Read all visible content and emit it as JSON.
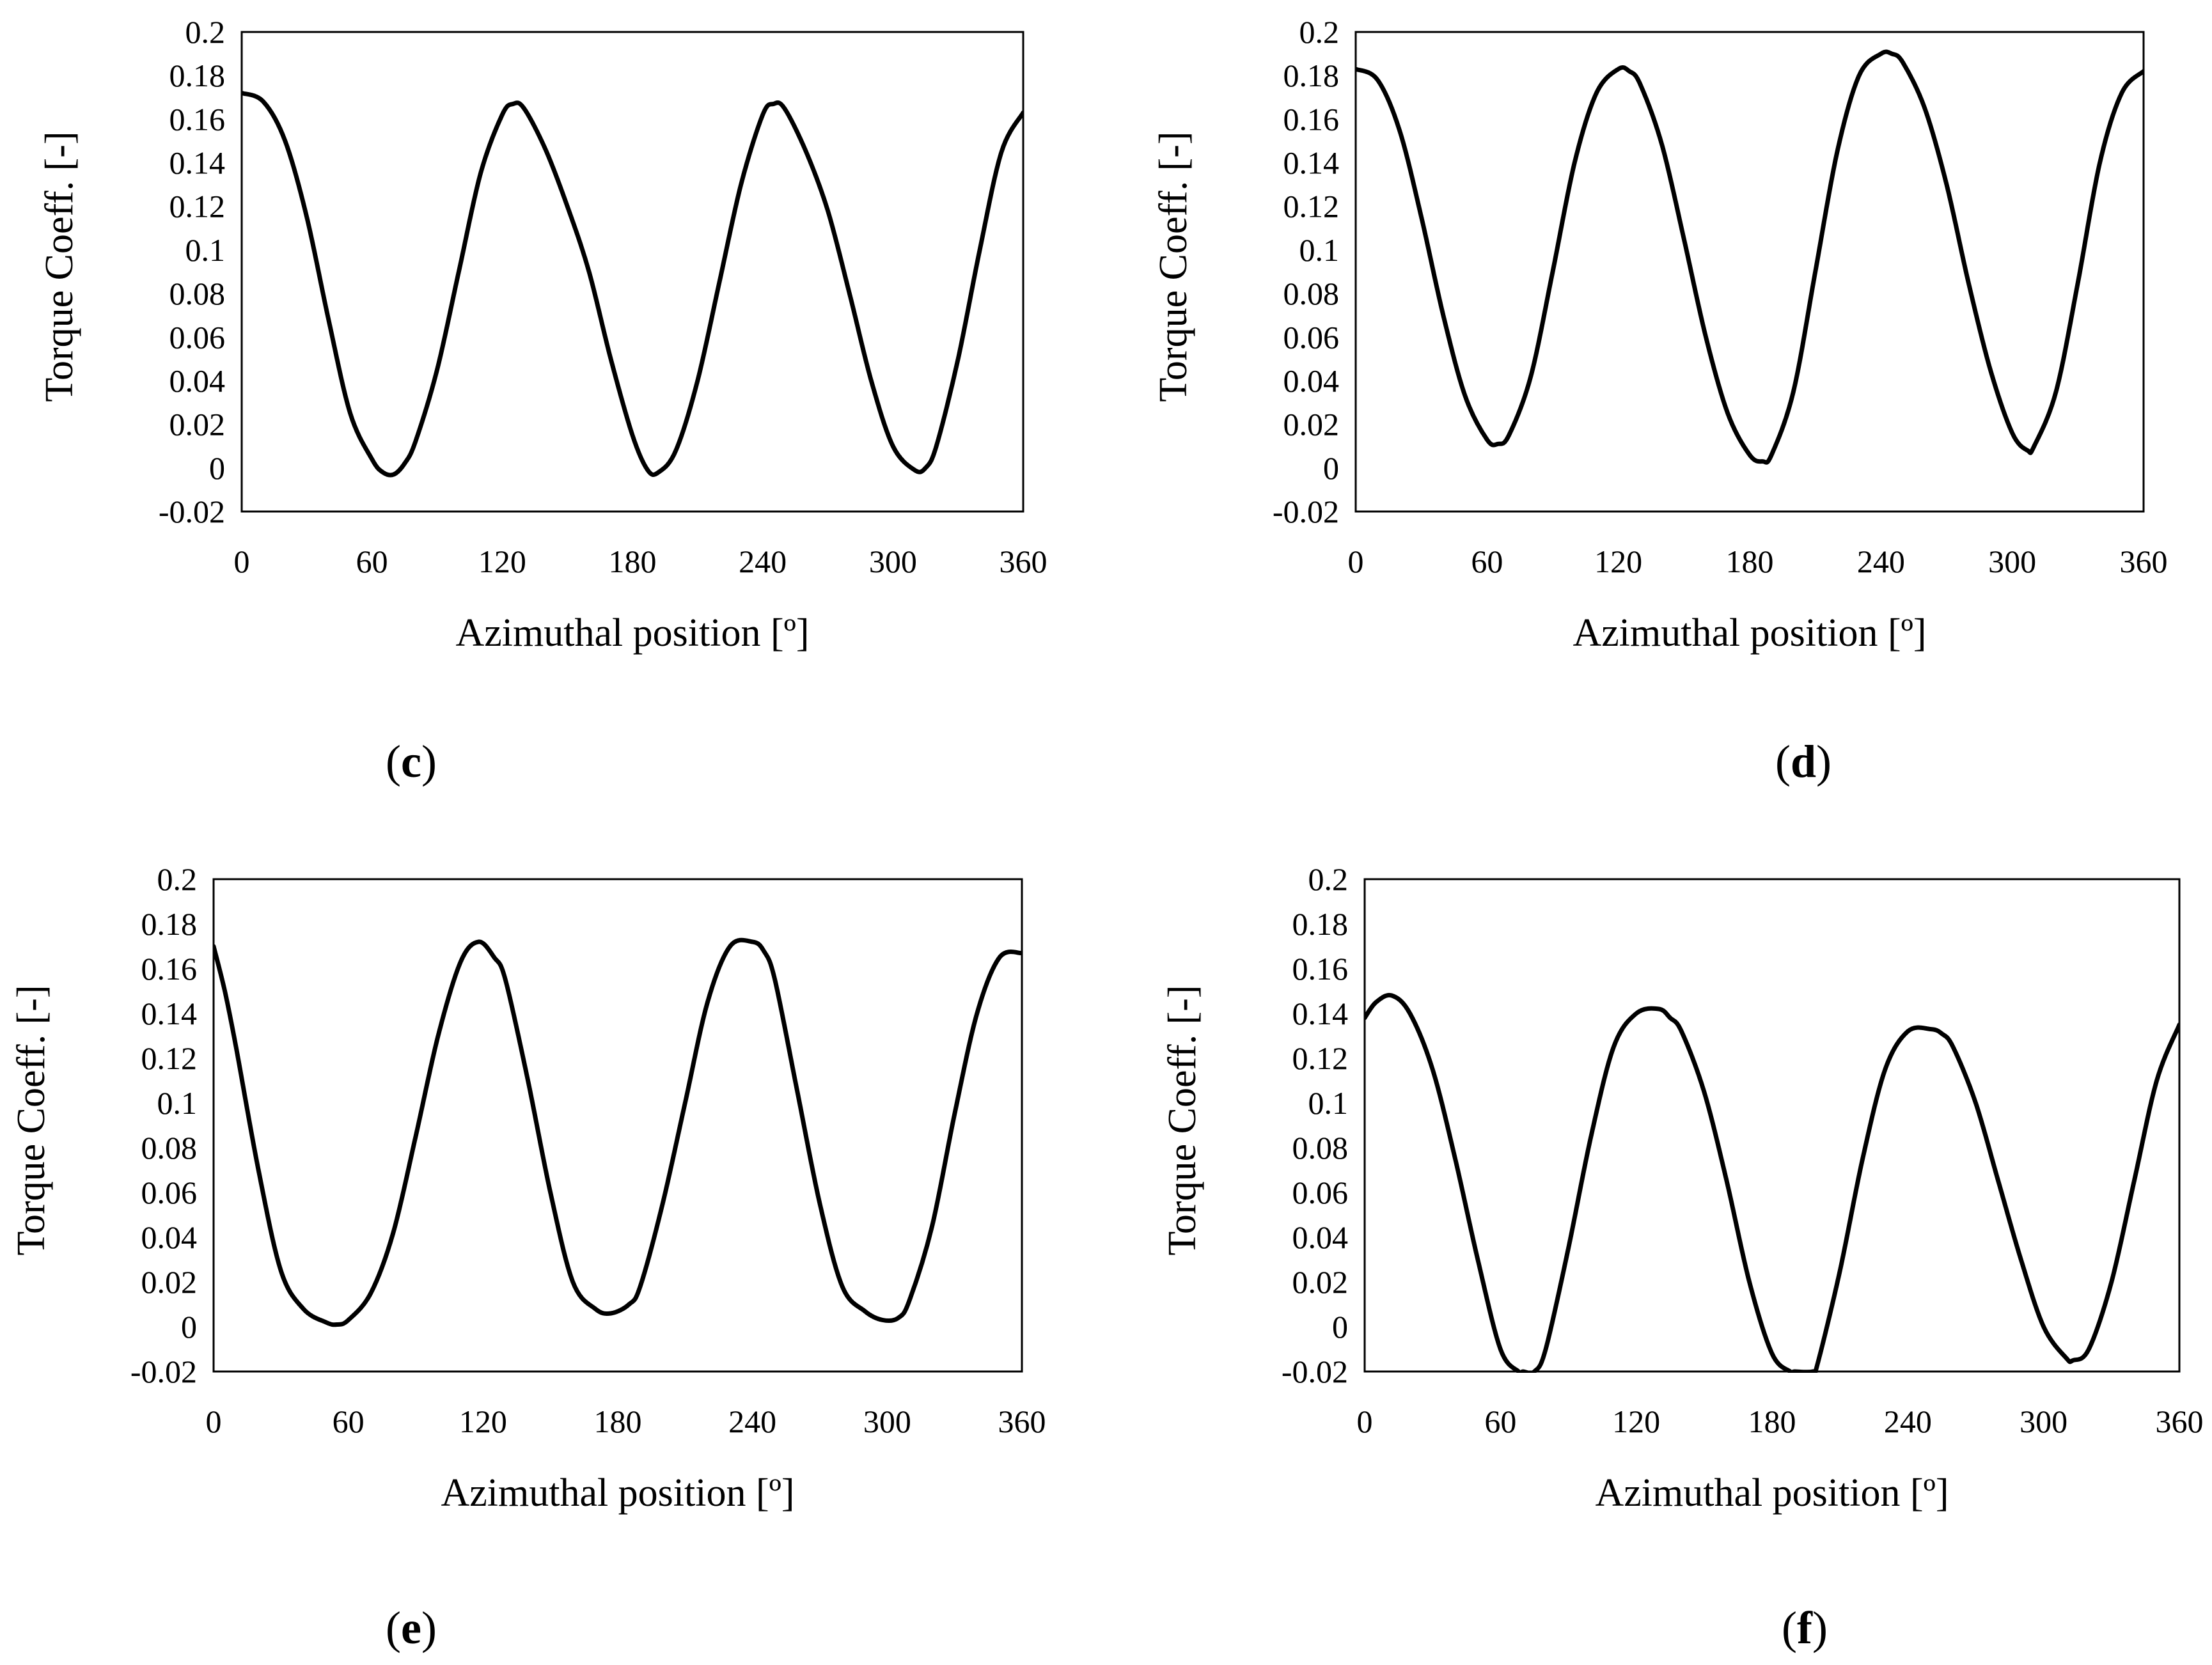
{
  "chart_data": [
    {
      "panel": "c",
      "type": "line",
      "xlabel": "Azimuthal position [º]",
      "ylabel": "Torque Coeff. [-]",
      "xlim": [
        0,
        360
      ],
      "ylim": [
        -0.02,
        0.2
      ],
      "xticks": [
        "0",
        "60",
        "120",
        "180",
        "240",
        "300",
        "360"
      ],
      "yticks": [
        "-0.02",
        "0",
        "0.02",
        "0.04",
        "0.06",
        "0.08",
        "0.1",
        "0.12",
        "0.14",
        "0.16",
        "0.18",
        "0.2"
      ],
      "series": [
        {
          "name": "Torque Coeff.",
          "x": [
            0,
            10,
            20,
            30,
            40,
            50,
            60,
            65,
            70,
            75,
            80,
            90,
            100,
            110,
            120,
            125,
            130,
            140,
            150,
            160,
            170,
            180,
            187,
            192,
            200,
            210,
            220,
            230,
            240,
            245,
            250,
            260,
            270,
            280,
            290,
            300,
            310,
            315,
            320,
            330,
            340,
            350,
            360
          ],
          "y": [
            0.172,
            0.168,
            0.15,
            0.115,
            0.068,
            0.025,
            0.004,
            -0.002,
            -0.003,
            0.002,
            0.012,
            0.045,
            0.09,
            0.135,
            0.162,
            0.167,
            0.165,
            0.146,
            0.12,
            0.09,
            0.05,
            0.015,
            -0.001,
            -0.002,
            0.008,
            0.04,
            0.085,
            0.13,
            0.162,
            0.167,
            0.165,
            0.145,
            0.118,
            0.08,
            0.04,
            0.01,
            -0.001,
            0.0,
            0.01,
            0.05,
            0.1,
            0.145,
            0.163
          ]
        }
      ]
    },
    {
      "panel": "d",
      "type": "line",
      "xlabel": "Azimuthal position [º]",
      "ylabel": "Torque Coeff. [-]",
      "xlim": [
        0,
        360
      ],
      "ylim": [
        -0.02,
        0.2
      ],
      "xticks": [
        "0",
        "60",
        "120",
        "180",
        "240",
        "300",
        "360"
      ],
      "yticks": [
        "-0.02",
        "0",
        "0.02",
        "0.04",
        "0.06",
        "0.08",
        "0.1",
        "0.12",
        "0.14",
        "0.16",
        "0.18",
        "0.2"
      ],
      "series": [
        {
          "name": "Torque Coeff.",
          "x": [
            0,
            10,
            20,
            30,
            40,
            50,
            60,
            65,
            70,
            80,
            90,
            100,
            110,
            120,
            125,
            130,
            140,
            150,
            160,
            170,
            180,
            186,
            190,
            200,
            210,
            220,
            230,
            240,
            245,
            250,
            260,
            270,
            280,
            290,
            300,
            307,
            310,
            320,
            330,
            340,
            350,
            360
          ],
          "y": [
            0.183,
            0.178,
            0.155,
            0.115,
            0.07,
            0.033,
            0.013,
            0.011,
            0.015,
            0.042,
            0.09,
            0.14,
            0.172,
            0.183,
            0.182,
            0.176,
            0.148,
            0.105,
            0.06,
            0.025,
            0.006,
            0.003,
            0.006,
            0.035,
            0.09,
            0.145,
            0.18,
            0.19,
            0.19,
            0.186,
            0.165,
            0.13,
            0.085,
            0.045,
            0.016,
            0.008,
            0.01,
            0.035,
            0.085,
            0.14,
            0.172,
            0.182
          ]
        }
      ]
    },
    {
      "panel": "e",
      "type": "line",
      "xlabel": "Azimuthal position [º]",
      "ylabel": "Torque Coeff. [-]",
      "xlim": [
        0,
        360
      ],
      "ylim": [
        -0.02,
        0.2
      ],
      "xticks": [
        "0",
        "60",
        "120",
        "180",
        "240",
        "300",
        "360"
      ],
      "yticks": [
        "-0.02",
        "0",
        "0.02",
        "0.04",
        "0.06",
        "0.08",
        "0.1",
        "0.12",
        "0.14",
        "0.16",
        "0.18",
        "0.2"
      ],
      "series": [
        {
          "name": "Torque Coeff.",
          "x": [
            0,
            5,
            10,
            20,
            30,
            40,
            50,
            55,
            60,
            70,
            80,
            90,
            100,
            110,
            118,
            125,
            130,
            140,
            150,
            160,
            170,
            177,
            185,
            190,
            200,
            210,
            220,
            230,
            240,
            245,
            250,
            260,
            270,
            280,
            290,
            298,
            305,
            310,
            320,
            330,
            340,
            350,
            360
          ],
          "y": [
            0.17,
            0.15,
            0.125,
            0.07,
            0.025,
            0.008,
            0.002,
            0.001,
            0.003,
            0.015,
            0.042,
            0.085,
            0.13,
            0.163,
            0.172,
            0.165,
            0.155,
            0.11,
            0.06,
            0.02,
            0.008,
            0.006,
            0.01,
            0.018,
            0.055,
            0.1,
            0.145,
            0.17,
            0.172,
            0.168,
            0.155,
            0.105,
            0.055,
            0.018,
            0.007,
            0.003,
            0.004,
            0.012,
            0.045,
            0.095,
            0.14,
            0.165,
            0.167
          ]
        }
      ]
    },
    {
      "panel": "f",
      "type": "line",
      "xlabel": "Azimuthal position [º]",
      "ylabel": "Torque Coeff. [-]",
      "xlim": [
        0,
        360
      ],
      "ylim": [
        -0.02,
        0.2
      ],
      "xticks": [
        "0",
        "60",
        "120",
        "180",
        "240",
        "300",
        "360"
      ],
      "yticks": [
        "-0.02",
        "0",
        "0.02",
        "0.04",
        "0.06",
        "0.08",
        "0.1",
        "0.12",
        "0.14",
        "0.16",
        "0.18",
        "0.2"
      ],
      "series": [
        {
          "name": "Torque Coeff.",
          "x": [
            0,
            5,
            12,
            20,
            30,
            40,
            50,
            60,
            68,
            70,
            75,
            80,
            90,
            100,
            110,
            120,
            130,
            135,
            140,
            150,
            160,
            170,
            180,
            188,
            190,
            198,
            200,
            210,
            220,
            230,
            240,
            250,
            255,
            260,
            270,
            280,
            290,
            300,
            310,
            313,
            320,
            330,
            340,
            350,
            360
          ],
          "y": [
            0.138,
            0.145,
            0.148,
            0.14,
            0.115,
            0.075,
            0.03,
            -0.01,
            -0.02,
            -0.02,
            -0.02,
            -0.01,
            0.035,
            0.085,
            0.125,
            0.14,
            0.142,
            0.138,
            0.132,
            0.105,
            0.065,
            0.02,
            -0.012,
            -0.02,
            -0.02,
            -0.02,
            -0.017,
            0.025,
            0.075,
            0.115,
            0.132,
            0.133,
            0.131,
            0.125,
            0.1,
            0.065,
            0.03,
            0.0,
            -0.014,
            -0.015,
            -0.01,
            0.02,
            0.065,
            0.11,
            0.135
          ]
        }
      ]
    }
  ]
}
